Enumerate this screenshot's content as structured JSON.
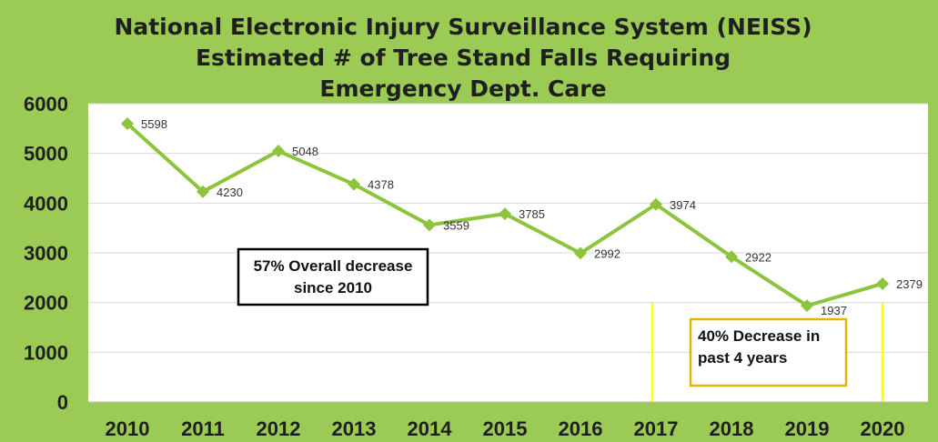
{
  "chart_data": {
    "type": "line",
    "title_lines": [
      "National Electronic Injury Surveillance System (NEISS)",
      "Estimated # of Tree Stand Falls Requiring",
      "Emergency  Dept. Care"
    ],
    "categories": [
      "2010",
      "2011",
      "2012",
      "2013",
      "2014",
      "2015",
      "2016",
      "2017",
      "2018",
      "2019",
      "2020"
    ],
    "series": [
      {
        "name": "Tree Stand Falls",
        "values": [
          5598,
          4230,
          5048,
          4378,
          3559,
          3785,
          2992,
          3974,
          2922,
          1937,
          2379
        ]
      }
    ],
    "data_labels": [
      "5598",
      "4230",
      "5048",
      "4378",
      "3559",
      "3785",
      "2992",
      "3974",
      "2922",
      "1937",
      "2379"
    ],
    "ylim": [
      0,
      6000
    ],
    "yticks": [
      0,
      1000,
      2000,
      3000,
      4000,
      5000,
      6000
    ],
    "ytick_labels": [
      "0",
      "1000",
      "2000",
      "3000",
      "4000",
      "5000",
      "6000"
    ],
    "xlabel": "",
    "ylabel": "",
    "grid": true,
    "annotations": [
      {
        "lines": [
          "57%  Overall decrease",
          "since 2010"
        ]
      },
      {
        "lines": [
          "40%  Decrease in",
          "past 4 years"
        ]
      }
    ],
    "colors": {
      "background": "#9ccb55",
      "plot_area": "#ffffff",
      "line": "#8cc43c",
      "gridline": "#d9d9d9",
      "highlight": "#ffff00",
      "box2_border": "#e8b200",
      "box1_border": "#000000"
    }
  }
}
